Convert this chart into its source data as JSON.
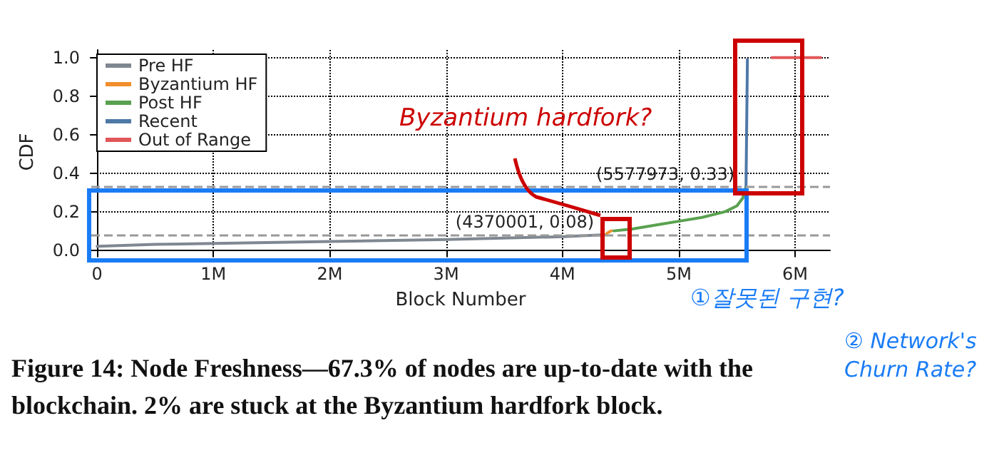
{
  "chart_data": {
    "type": "line",
    "xlabel": "Block Number",
    "ylabel": "CDF",
    "xlim": [
      -50000,
      6300000
    ],
    "ylim": [
      -0.02,
      1.04
    ],
    "xticks": [
      0,
      {
        "value": 1000000,
        "label": "1M"
      },
      {
        "value": 2000000,
        "label": "2M"
      },
      {
        "value": 3000000,
        "label": "3M"
      },
      {
        "value": 4000000,
        "label": "4M"
      },
      {
        "value": 5000000,
        "label": "5M"
      },
      {
        "value": 6000000,
        "label": "6M"
      }
    ],
    "yticks": [
      {
        "value": 0,
        "label": "0.0"
      },
      0.2,
      0.4,
      0.6,
      0.8,
      {
        "value": 1,
        "label": "1.0"
      }
    ],
    "grid": true,
    "legend": "top left",
    "line_style": "solid",
    "marker": "none",
    "series": [
      {
        "name": "Pre HF",
        "color": "#7f8791",
        "x": [
          0,
          500000,
          1000000,
          2000000,
          3000000,
          4000000,
          4370000
        ],
        "values": [
          0.02,
          0.03,
          0.035,
          0.045,
          0.055,
          0.07,
          0.08
        ]
      },
      {
        "name": "Byzantium HF",
        "color": "#f28e2b",
        "x": [
          4370001,
          4390000,
          4420000
        ],
        "values": [
          0.08,
          0.09,
          0.1
        ]
      },
      {
        "name": "Post HF",
        "color": "#59a14f",
        "x": [
          4440000,
          4600000,
          4800000,
          5000000,
          5200000,
          5400000,
          5500000,
          5550000,
          5577973
        ],
        "values": [
          0.1,
          0.11,
          0.13,
          0.15,
          0.17,
          0.2,
          0.23,
          0.27,
          0.33
        ]
      },
      {
        "name": "Recent",
        "color": "#4e79a7",
        "x": [
          5577973,
          5590000
        ],
        "values": [
          0.33,
          0.99
        ]
      },
      {
        "name": "Out of Range",
        "color": "#e15759",
        "x": [
          5800000,
          6220000
        ],
        "values": [
          1.0,
          1.0
        ]
      }
    ],
    "ref_lines": [
      {
        "axis": "y",
        "value": 0.08,
        "color": "#999999",
        "line_style": "dashed"
      },
      {
        "axis": "y",
        "value": 0.33,
        "color": "#999999",
        "line_style": "dashed"
      }
    ],
    "annotations": [
      {
        "text": "(4370001, 0.08)",
        "x": 4370001,
        "y": 0.08
      },
      {
        "text": "(5577973, 0.33)",
        "x": 5577973,
        "y": 0.33
      },
      "Figure 14: Node Freshness—67.3% of nodes are up-to-date with the blockchain. 2% are stuck at the Byzantium hardfork block.",
      "Byzantium hardfork?",
      "①잘못된 구현?",
      "② Network's Churn Rate?"
    ]
  }
}
